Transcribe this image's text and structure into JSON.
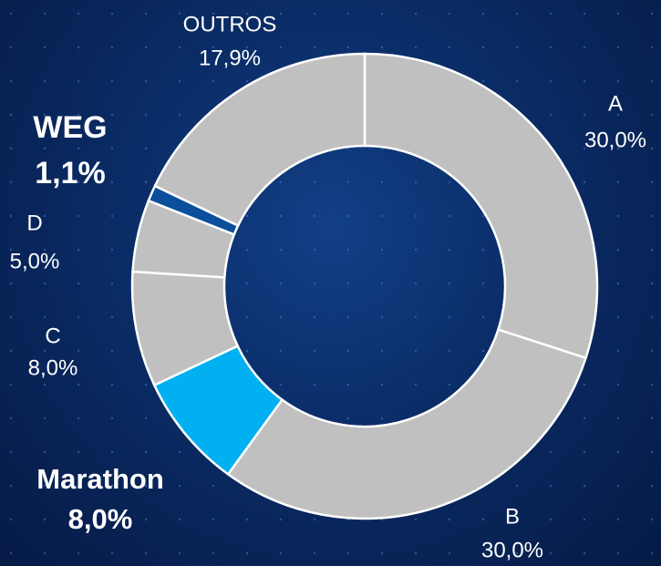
{
  "chart_data": {
    "type": "donut",
    "categories": [
      "A",
      "B",
      "Marathon",
      "C",
      "D",
      "WEG",
      "OUTROS"
    ],
    "values": [
      30.0,
      30.0,
      8.0,
      8.0,
      5.0,
      1.1,
      17.9
    ],
    "value_labels": [
      "30,0%",
      "30,0%",
      "8,0%",
      "8,0%",
      "5,0%",
      "1,1%",
      "17,9%"
    ],
    "colors": [
      "#c0c0c0",
      "#c0c0c0",
      "#00b0f0",
      "#c0c0c0",
      "#c0c0c0",
      "#0b4f9c",
      "#c0c0c0"
    ]
  }
}
